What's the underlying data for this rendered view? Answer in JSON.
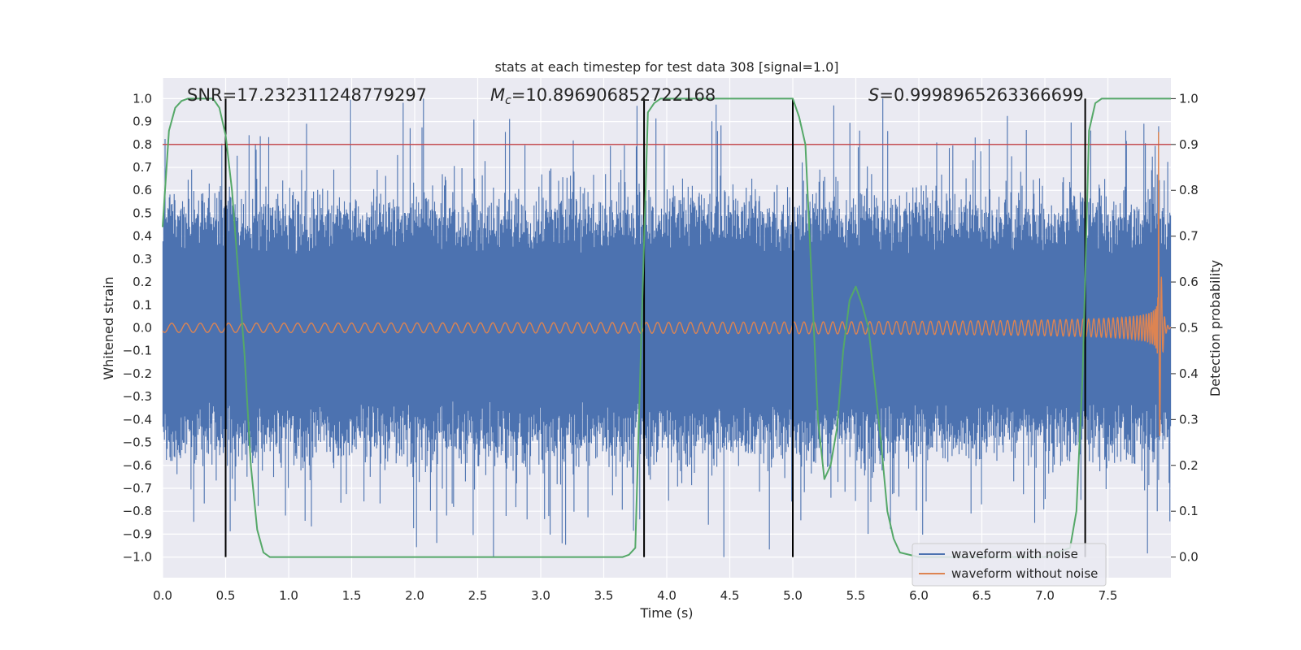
{
  "chart_data": {
    "type": "line",
    "title": "stats at each timestep for test data 308 [signal=1.0]",
    "xlabel": "Time (s)",
    "ylabel": "Whitened strain",
    "y2label": "Detection probability",
    "xlim": [
      0.0,
      8.0
    ],
    "ylim": [
      -1.09,
      1.09
    ],
    "y2lim": [
      -0.045,
      1.045
    ],
    "xticks": [
      "0.0",
      "0.5",
      "1.0",
      "1.5",
      "2.0",
      "2.5",
      "3.0",
      "3.5",
      "4.0",
      "4.5",
      "5.0",
      "5.5",
      "6.0",
      "6.5",
      "7.0",
      "7.5"
    ],
    "yticks": [
      "1.0",
      "0.9",
      "0.8",
      "0.7",
      "0.6",
      "0.5",
      "0.4",
      "0.3",
      "0.2",
      "0.1",
      "0.0",
      "-0.1",
      "-0.2",
      "-0.3",
      "-0.4",
      "-0.5",
      "-0.6",
      "-0.7",
      "-0.8",
      "-0.9",
      "-1.0"
    ],
    "y2ticks": [
      "1.0",
      "0.9",
      "0.8",
      "0.7",
      "0.6",
      "0.5",
      "0.4",
      "0.3",
      "0.2",
      "0.1",
      "0.0"
    ],
    "annotations": {
      "snr": "SNR=17.232311248779297",
      "mc_symbol": "M",
      "mc_sub": "c",
      "mc_value": "=10.896906852722168",
      "s_symbol": "S",
      "s_value": "=0.9998965263366699"
    },
    "threshold": 0.8,
    "vertical_lines": [
      0.5,
      3.82,
      5.0,
      7.32
    ],
    "series": [
      {
        "name": "waveform with noise",
        "color": "#4c72b0",
        "envelope": {
          "core_amplitude": 0.4,
          "peak_range": [
            -0.99,
            1.0
          ],
          "samples": 1440
        }
      },
      {
        "name": "waveform without noise",
        "color": "#dd8452",
        "chirp": {
          "t_merge": 7.9,
          "amplitude_start": 0.02,
          "amplitude_peak": 0.98,
          "cycles_visible": 180
        }
      },
      {
        "name": "detection probability",
        "color": "#55a868",
        "axis": "right",
        "x": [
          0.0,
          0.05,
          0.1,
          0.15,
          0.2,
          0.25,
          0.3,
          0.35,
          0.4,
          0.45,
          0.5,
          0.55,
          0.6,
          0.65,
          0.7,
          0.75,
          0.8,
          0.85,
          1.0,
          1.5,
          2.0,
          2.5,
          3.0,
          3.5,
          3.65,
          3.7,
          3.75,
          3.8,
          3.85,
          3.9,
          3.95,
          4.0,
          4.5,
          5.0,
          5.05,
          5.1,
          5.15,
          5.2,
          5.25,
          5.3,
          5.35,
          5.4,
          5.45,
          5.5,
          5.55,
          5.6,
          5.65,
          5.7,
          5.75,
          5.8,
          5.85,
          6.0,
          6.5,
          7.0,
          7.2,
          7.25,
          7.3,
          7.35,
          7.4,
          7.45,
          7.5,
          8.0
        ],
        "y": [
          0.72,
          0.93,
          0.98,
          0.995,
          1.0,
          1.0,
          1.0,
          1.0,
          1.0,
          0.98,
          0.92,
          0.8,
          0.62,
          0.44,
          0.2,
          0.06,
          0.01,
          0.0,
          0.0,
          0.0,
          0.0,
          0.0,
          0.0,
          0.0,
          0.0,
          0.005,
          0.02,
          0.5,
          0.97,
          0.99,
          1.0,
          1.0,
          1.0,
          1.0,
          0.96,
          0.9,
          0.6,
          0.3,
          0.17,
          0.2,
          0.28,
          0.45,
          0.56,
          0.59,
          0.55,
          0.5,
          0.38,
          0.25,
          0.1,
          0.04,
          0.01,
          0.0,
          0.0,
          0.0,
          0.02,
          0.1,
          0.4,
          0.93,
          0.99,
          1.0,
          1.0,
          1.0
        ]
      }
    ],
    "threshold_color": "#c44e52",
    "legend": [
      "waveform with noise",
      "waveform without noise"
    ],
    "legend_position": "lower-right",
    "grid": true
  }
}
